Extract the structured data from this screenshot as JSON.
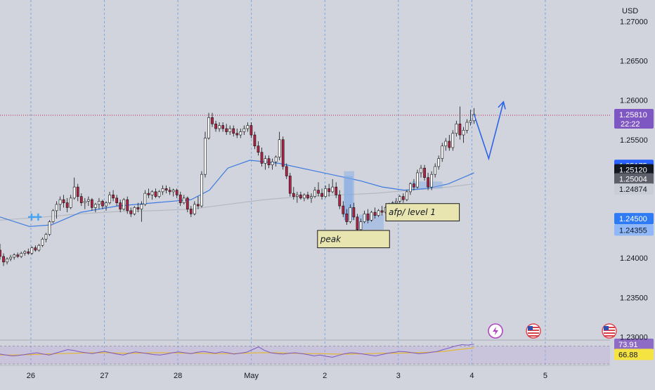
{
  "chart_data": {
    "type": "candlestick",
    "currency": "USD",
    "y_scale": {
      "min": 1.2296,
      "max": 1.2727
    },
    "price_ticks": [
      "1.27000",
      "1.26500",
      "1.26000",
      "1.25500",
      "1.24000",
      "1.23500",
      "1.23000"
    ],
    "x_ticks": [
      {
        "label": "26",
        "t": 26
      },
      {
        "label": "27",
        "t": 27
      },
      {
        "label": "28",
        "t": 28
      },
      {
        "label": "May",
        "t": 29
      },
      {
        "label": "2",
        "t": 30
      },
      {
        "label": "3",
        "t": 31
      },
      {
        "label": "4",
        "t": 32
      },
      {
        "label": "5",
        "t": 33
      }
    ],
    "x_range": [
      25.4,
      33.7
    ],
    "candles": [
      [
        1.241,
        1.2418,
        1.2398,
        1.2402
      ],
      [
        1.2402,
        1.2406,
        1.239,
        1.2395
      ],
      [
        1.2395,
        1.2401,
        1.2392,
        1.2399
      ],
      [
        1.2399,
        1.2404,
        1.2396,
        1.2401
      ],
      [
        1.2401,
        1.2406,
        1.2398,
        1.2404
      ],
      [
        1.2404,
        1.2407,
        1.24,
        1.2402
      ],
      [
        1.2402,
        1.2408,
        1.24,
        1.2406
      ],
      [
        1.2406,
        1.241,
        1.2403,
        1.2408
      ],
      [
        1.2408,
        1.2412,
        1.2404,
        1.2406
      ],
      [
        1.2406,
        1.2415,
        1.2404,
        1.2413
      ],
      [
        1.2413,
        1.2416,
        1.2408,
        1.241
      ],
      [
        1.241,
        1.2418,
        1.2408,
        1.2416
      ],
      [
        1.2416,
        1.2426,
        1.2414,
        1.2424
      ],
      [
        1.2424,
        1.2432,
        1.242,
        1.243
      ],
      [
        1.243,
        1.2448,
        1.2428,
        1.2446
      ],
      [
        1.2446,
        1.2462,
        1.2444,
        1.246
      ],
      [
        1.246,
        1.2472,
        1.245,
        1.2468
      ],
      [
        1.2468,
        1.2478,
        1.246,
        1.2474
      ],
      [
        1.2474,
        1.248,
        1.2464,
        1.247
      ],
      [
        1.247,
        1.2476,
        1.2458,
        1.2464
      ],
      [
        1.2464,
        1.248,
        1.2462,
        1.2476
      ],
      [
        1.2476,
        1.2502,
        1.2474,
        1.249
      ],
      [
        1.249,
        1.2494,
        1.2472,
        1.2478
      ],
      [
        1.2478,
        1.2482,
        1.2466,
        1.247
      ],
      [
        1.247,
        1.2476,
        1.2462,
        1.2472
      ],
      [
        1.2472,
        1.2478,
        1.2466,
        1.2474
      ],
      [
        1.2474,
        1.2476,
        1.246,
        1.2464
      ],
      [
        1.2464,
        1.247,
        1.2458,
        1.2468
      ],
      [
        1.2468,
        1.2476,
        1.2462,
        1.2472
      ],
      [
        1.2472,
        1.2474,
        1.2462,
        1.2466
      ],
      [
        1.2466,
        1.2472,
        1.246,
        1.247
      ],
      [
        1.247,
        1.2484,
        1.2468,
        1.248
      ],
      [
        1.248,
        1.2486,
        1.2472,
        1.2476
      ],
      [
        1.2476,
        1.248,
        1.2466,
        1.247
      ],
      [
        1.247,
        1.2474,
        1.2458,
        1.2462
      ],
      [
        1.2462,
        1.2476,
        1.246,
        1.2474
      ],
      [
        1.2474,
        1.2478,
        1.2456,
        1.246
      ],
      [
        1.246,
        1.2464,
        1.2452,
        1.2456
      ],
      [
        1.2456,
        1.2466,
        1.2454,
        1.2464
      ],
      [
        1.2464,
        1.247,
        1.2458,
        1.2462
      ],
      [
        1.2462,
        1.2472,
        1.2446,
        1.2468
      ],
      [
        1.2468,
        1.2486,
        1.2466,
        1.2482
      ],
      [
        1.2482,
        1.2488,
        1.2476,
        1.248
      ],
      [
        1.248,
        1.2486,
        1.2474,
        1.2484
      ],
      [
        1.2484,
        1.2488,
        1.2476,
        1.2478
      ],
      [
        1.2478,
        1.2486,
        1.2476,
        1.2484
      ],
      [
        1.2484,
        1.2492,
        1.248,
        1.2488
      ],
      [
        1.2488,
        1.2492,
        1.2482,
        1.2486
      ],
      [
        1.2486,
        1.249,
        1.248,
        1.2484
      ],
      [
        1.2484,
        1.2488,
        1.2478,
        1.2486
      ],
      [
        1.2486,
        1.2488,
        1.2476,
        1.248
      ],
      [
        1.248,
        1.2484,
        1.2466,
        1.247
      ],
      [
        1.247,
        1.248,
        1.2468,
        1.2476
      ],
      [
        1.2476,
        1.2478,
        1.2458,
        1.2462
      ],
      [
        1.2462,
        1.2466,
        1.2452,
        1.2456
      ],
      [
        1.2456,
        1.2472,
        1.2454,
        1.2468
      ],
      [
        1.2468,
        1.2478,
        1.2462,
        1.2466
      ],
      [
        1.2466,
        1.251,
        1.2464,
        1.2506
      ],
      [
        1.2506,
        1.256,
        1.2502,
        1.2552
      ],
      [
        1.2552,
        1.2584,
        1.255,
        1.2578
      ],
      [
        1.2578,
        1.2584,
        1.2566,
        1.257
      ],
      [
        1.257,
        1.2574,
        1.256,
        1.2564
      ],
      [
        1.2564,
        1.2572,
        1.256,
        1.2568
      ],
      [
        1.2568,
        1.2572,
        1.256,
        1.2564
      ],
      [
        1.2564,
        1.257,
        1.2556,
        1.256
      ],
      [
        1.256,
        1.2568,
        1.2556,
        1.2564
      ],
      [
        1.2564,
        1.2568,
        1.2554,
        1.2558
      ],
      [
        1.2558,
        1.2564,
        1.2552,
        1.2556
      ],
      [
        1.2556,
        1.2564,
        1.2552,
        1.256
      ],
      [
        1.256,
        1.2568,
        1.2556,
        1.2564
      ],
      [
        1.2564,
        1.2572,
        1.256,
        1.2568
      ],
      [
        1.2568,
        1.2572,
        1.2552,
        1.2556
      ],
      [
        1.2556,
        1.256,
        1.2538,
        1.2542
      ],
      [
        1.2542,
        1.2548,
        1.253,
        1.2534
      ],
      [
        1.2534,
        1.254,
        1.2516,
        1.252
      ],
      [
        1.252,
        1.253,
        1.2512,
        1.2526
      ],
      [
        1.2526,
        1.253,
        1.2514,
        1.2518
      ],
      [
        1.2518,
        1.2526,
        1.2512,
        1.2522
      ],
      [
        1.2522,
        1.253,
        1.2516,
        1.2528
      ],
      [
        1.2528,
        1.256,
        1.2524,
        1.255
      ],
      [
        1.255,
        1.2554,
        1.2512,
        1.2516
      ],
      [
        1.2516,
        1.252,
        1.25,
        1.2504
      ],
      [
        1.2504,
        1.2508,
        1.2478,
        1.2482
      ],
      [
        1.2482,
        1.249,
        1.2474,
        1.2478
      ],
      [
        1.2478,
        1.2484,
        1.247,
        1.248
      ],
      [
        1.248,
        1.2484,
        1.2474,
        1.2476
      ],
      [
        1.2476,
        1.2482,
        1.2472,
        1.248
      ],
      [
        1.248,
        1.2484,
        1.2474,
        1.2476
      ],
      [
        1.2476,
        1.2482,
        1.247,
        1.2478
      ],
      [
        1.2478,
        1.249,
        1.2476,
        1.2486
      ],
      [
        1.2486,
        1.2496,
        1.2478,
        1.2482
      ],
      [
        1.2482,
        1.2488,
        1.2474,
        1.2478
      ],
      [
        1.2478,
        1.2492,
        1.2476,
        1.2488
      ],
      [
        1.2488,
        1.2494,
        1.2478,
        1.2484
      ],
      [
        1.2484,
        1.25,
        1.2482,
        1.249
      ],
      [
        1.249,
        1.2496,
        1.2476,
        1.248
      ],
      [
        1.248,
        1.2486,
        1.2462,
        1.2466
      ],
      [
        1.2466,
        1.2472,
        1.2452,
        1.2456
      ],
      [
        1.2456,
        1.2462,
        1.2442,
        1.2446
      ],
      [
        1.2446,
        1.2468,
        1.2444,
        1.2464
      ],
      [
        1.2464,
        1.247,
        1.2448,
        1.2452
      ],
      [
        1.2452,
        1.2456,
        1.2432,
        1.2436
      ],
      [
        1.2436,
        1.245,
        1.2434,
        1.2446
      ],
      [
        1.2446,
        1.246,
        1.2444,
        1.2456
      ],
      [
        1.2456,
        1.2462,
        1.2444,
        1.2448
      ],
      [
        1.2448,
        1.246,
        1.2446,
        1.2458
      ],
      [
        1.2458,
        1.2464,
        1.245,
        1.2454
      ],
      [
        1.2454,
        1.2462,
        1.2452,
        1.246
      ],
      [
        1.246,
        1.2466,
        1.2454,
        1.2458
      ],
      [
        1.2458,
        1.2466,
        1.2456,
        1.2464
      ],
      [
        1.2464,
        1.247,
        1.2458,
        1.2462
      ],
      [
        1.2462,
        1.2472,
        1.246,
        1.247
      ],
      [
        1.247,
        1.2476,
        1.2464,
        1.2472
      ],
      [
        1.2472,
        1.248,
        1.2468,
        1.2478
      ],
      [
        1.2478,
        1.2482,
        1.247,
        1.2474
      ],
      [
        1.2474,
        1.2486,
        1.2472,
        1.2484
      ],
      [
        1.2484,
        1.2496,
        1.248,
        1.2494
      ],
      [
        1.2494,
        1.25,
        1.2486,
        1.249
      ],
      [
        1.249,
        1.2512,
        1.2488,
        1.2508
      ],
      [
        1.2508,
        1.2518,
        1.2502,
        1.2514
      ],
      [
        1.2514,
        1.2518,
        1.2498,
        1.2502
      ],
      [
        1.2502,
        1.2508,
        1.2486,
        1.249
      ],
      [
        1.249,
        1.251,
        1.2486,
        1.2506
      ],
      [
        1.2506,
        1.252,
        1.2502,
        1.2516
      ],
      [
        1.2516,
        1.253,
        1.2512,
        1.2526
      ],
      [
        1.2526,
        1.2546,
        1.2522,
        1.2542
      ],
      [
        1.2542,
        1.2552,
        1.2536,
        1.2548
      ],
      [
        1.2548,
        1.2556,
        1.2536,
        1.254
      ],
      [
        1.254,
        1.2562,
        1.2536,
        1.2558
      ],
      [
        1.2558,
        1.2574,
        1.2554,
        1.257
      ],
      [
        1.257,
        1.2592,
        1.255,
        1.2556
      ],
      [
        1.2556,
        1.2566,
        1.2546,
        1.2562
      ],
      [
        1.2562,
        1.2576,
        1.2558,
        1.2572
      ],
      [
        1.2572,
        1.2588,
        1.2568,
        1.2574
      ],
      [
        1.2574,
        1.259,
        1.257,
        1.2582
      ]
    ],
    "candle_x_range": [
      25.4,
      31.85
    ],
    "ema_fast": [
      [
        25.4,
        1.2452
      ],
      [
        25.8,
        1.244
      ],
      [
        26.1,
        1.2442
      ],
      [
        26.5,
        1.2458
      ],
      [
        27.0,
        1.2466
      ],
      [
        27.5,
        1.247
      ],
      [
        28.0,
        1.2474
      ],
      [
        28.25,
        1.2486
      ],
      [
        28.5,
        1.2514
      ],
      [
        28.8,
        1.2524
      ],
      [
        29.2,
        1.252
      ],
      [
        29.6,
        1.2512
      ],
      [
        30.0,
        1.2504
      ],
      [
        30.3,
        1.2498
      ],
      [
        30.6,
        1.249
      ],
      [
        30.9,
        1.2486
      ],
      [
        31.2,
        1.2488
      ],
      [
        31.5,
        1.2494
      ],
      [
        31.75,
        1.2504
      ],
      [
        31.85,
        1.2508
      ]
    ],
    "ema_slow": [
      [
        25.4,
        1.2448
      ],
      [
        26.0,
        1.2452
      ],
      [
        26.5,
        1.2456
      ],
      [
        27.0,
        1.2459
      ],
      [
        27.5,
        1.246
      ],
      [
        28.0,
        1.2462
      ],
      [
        28.5,
        1.2468
      ],
      [
        29.0,
        1.2474
      ],
      [
        29.5,
        1.2478
      ],
      [
        30.0,
        1.248
      ],
      [
        30.5,
        1.2482
      ],
      [
        31.0,
        1.2486
      ],
      [
        31.5,
        1.249
      ],
      [
        31.85,
        1.2494
      ]
    ],
    "current_price_line": 1.2581,
    "projection": [
      [
        31.85,
        1.2582
      ],
      [
        32.05,
        1.2526
      ],
      [
        32.25,
        1.2598
      ]
    ],
    "zones": [
      {
        "t0": 30.08,
        "t1": 30.2,
        "p0": 1.2448,
        "p1": 1.2504
      },
      {
        "t0": 30.08,
        "t1": 30.22,
        "p0": 1.2448,
        "p1": 1.251
      },
      {
        "t0": 30.28,
        "t1": 30.62,
        "p0": 1.2436,
        "p1": 1.2455
      },
      {
        "t0": 31.0,
        "t1": 31.42,
        "p0": 1.2488,
        "p1": 1.2497
      }
    ],
    "annotations": [
      {
        "text": "afp/ level 1",
        "t0": 30.65,
        "t1": 31.65,
        "p0": 1.2447,
        "p1": 1.2469
      },
      {
        "text": "peak",
        "t0": 29.72,
        "t1": 30.7,
        "p0": 1.2413,
        "p1": 1.2435
      }
    ],
    "price_labels": [
      {
        "value": "1.25810",
        "extra": "22:22",
        "bg": "#7e57c2",
        "fg": "#ffffff",
        "p": 1.2581
      },
      {
        "value": "1.25175",
        "bg": "#2962ff",
        "fg": "#ffffff",
        "p": 1.25175
      },
      {
        "value": "1.25120",
        "bg": "#131722",
        "fg": "#ffffff",
        "p": 1.2512
      },
      {
        "value": "1.25004",
        "bg": "#5d606b",
        "fg": "#ffffff",
        "p": 1.25004
      },
      {
        "value": "1.24874",
        "bg": "#c9cdd6",
        "fg": "#131722",
        "p": 1.24874
      },
      {
        "value": "1.24500",
        "bg": "#2f7bf5",
        "fg": "#ffffff",
        "p": 1.245
      },
      {
        "value": "1.24355",
        "bg": "#90b8f8",
        "fg": "#131722",
        "p": 1.24355
      }
    ],
    "rsi": {
      "value1": "73.91",
      "value2": "66.88",
      "value1_bg": "#8e6cc6",
      "value2_bg": "#f5e342",
      "line": [
        52,
        50,
        48,
        49,
        51,
        53,
        55,
        52,
        50,
        54,
        58,
        62,
        60,
        57,
        55,
        53,
        56,
        58,
        55,
        52,
        50,
        54,
        57,
        55,
        53,
        51,
        50,
        52,
        55,
        57,
        55,
        53,
        56,
        58,
        56,
        54,
        57,
        55,
        52,
        54,
        56,
        62,
        68,
        60,
        55,
        53,
        52,
        54,
        55,
        53,
        51,
        48,
        50,
        47,
        45,
        49,
        53,
        55,
        54,
        52,
        50,
        48,
        51,
        54,
        56,
        58,
        57,
        55,
        53,
        54,
        56,
        58,
        62,
        66,
        70,
        73,
        72,
        74
      ],
      "line_range": [
        25.4,
        31.85
      ],
      "ma": [
        50,
        50,
        51,
        52,
        53,
        54,
        55,
        55,
        54,
        54,
        55,
        55,
        54,
        54,
        53,
        53,
        54,
        55,
        55,
        54,
        53,
        53,
        52,
        52,
        53,
        54,
        54,
        55,
        56,
        58,
        62,
        66
      ],
      "ma_range": [
        25.4,
        31.85
      ],
      "scale": [
        30,
        80
      ],
      "levels": [
        70,
        30
      ]
    },
    "event_icons": [
      "lightning-icon",
      "us-flag-icon",
      "us-flag-icon"
    ],
    "colors": {
      "bull": "#ffffff",
      "bear": "#b22244",
      "ema_fast": "#3d7ae0",
      "ema_slow": "#b5b8bf",
      "projection": "#2c63e8",
      "price_line": "#c2224f",
      "grid": "#4a90e2"
    }
  }
}
